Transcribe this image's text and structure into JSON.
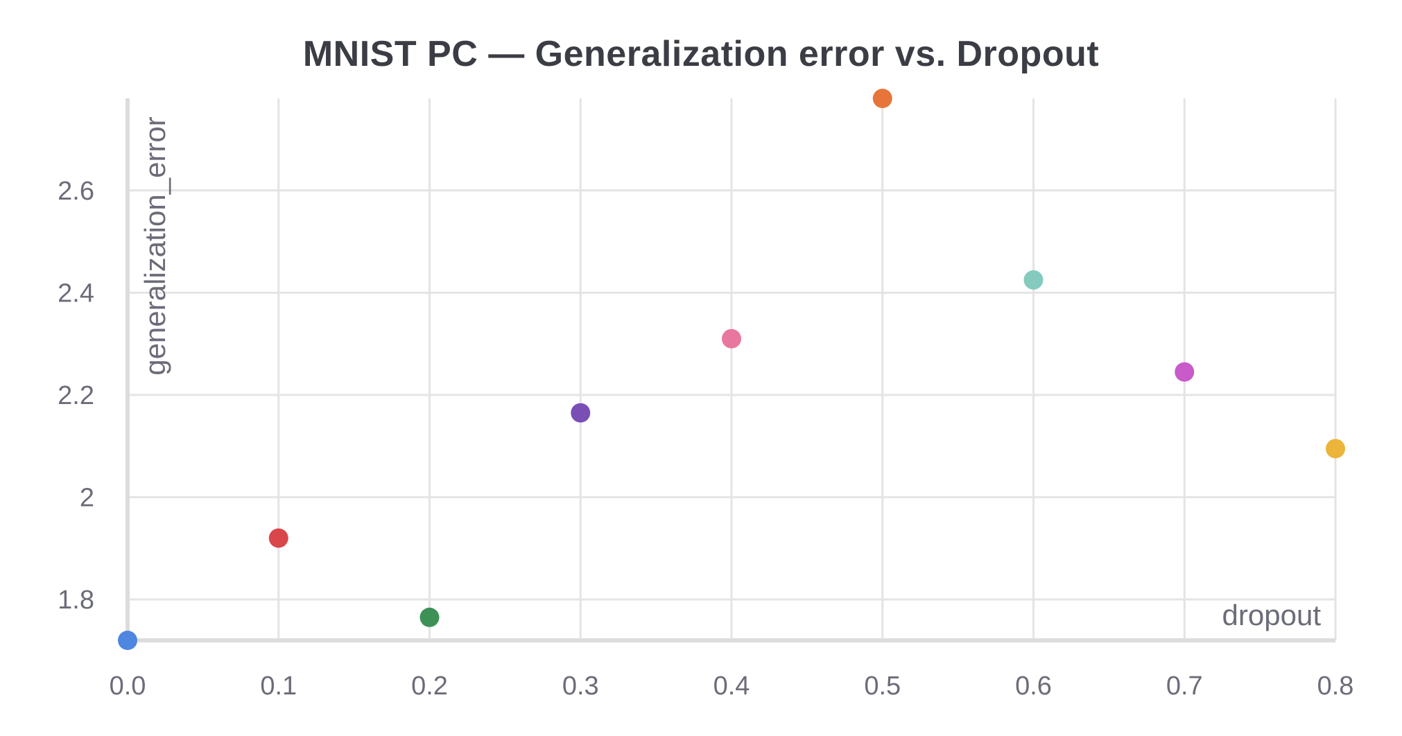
{
  "chart_data": {
    "type": "scatter",
    "title": "MNIST PC — Generalization error vs. Dropout",
    "xlabel": "dropout",
    "ylabel": "generalization_error",
    "xlim": [
      0.0,
      0.8
    ],
    "ylim": [
      1.72,
      2.78
    ],
    "x_ticks": [
      0.0,
      0.1,
      0.2,
      0.3,
      0.4,
      0.5,
      0.6,
      0.7,
      0.8
    ],
    "x_tick_labels": [
      "0.0",
      "0.1",
      "0.2",
      "0.3",
      "0.4",
      "0.5",
      "0.6",
      "0.7",
      "0.8"
    ],
    "y_ticks": [
      1.8,
      2.0,
      2.2,
      2.4,
      2.6
    ],
    "y_tick_labels": [
      "1.8",
      "2",
      "2.2",
      "2.4",
      "2.6"
    ],
    "grid": true,
    "legend": "none",
    "points": [
      {
        "x": 0.0,
        "y": 1.72,
        "color": "#4e86e0"
      },
      {
        "x": 0.1,
        "y": 1.92,
        "color": "#d9474a"
      },
      {
        "x": 0.2,
        "y": 1.765,
        "color": "#3d9157"
      },
      {
        "x": 0.3,
        "y": 2.165,
        "color": "#7a4fb5"
      },
      {
        "x": 0.4,
        "y": 2.31,
        "color": "#e8779f"
      },
      {
        "x": 0.5,
        "y": 2.78,
        "color": "#e7743a"
      },
      {
        "x": 0.6,
        "y": 2.425,
        "color": "#84cbbd"
      },
      {
        "x": 0.7,
        "y": 2.245,
        "color": "#c95ac9"
      },
      {
        "x": 0.8,
        "y": 2.095,
        "color": "#ecb43a"
      }
    ]
  }
}
